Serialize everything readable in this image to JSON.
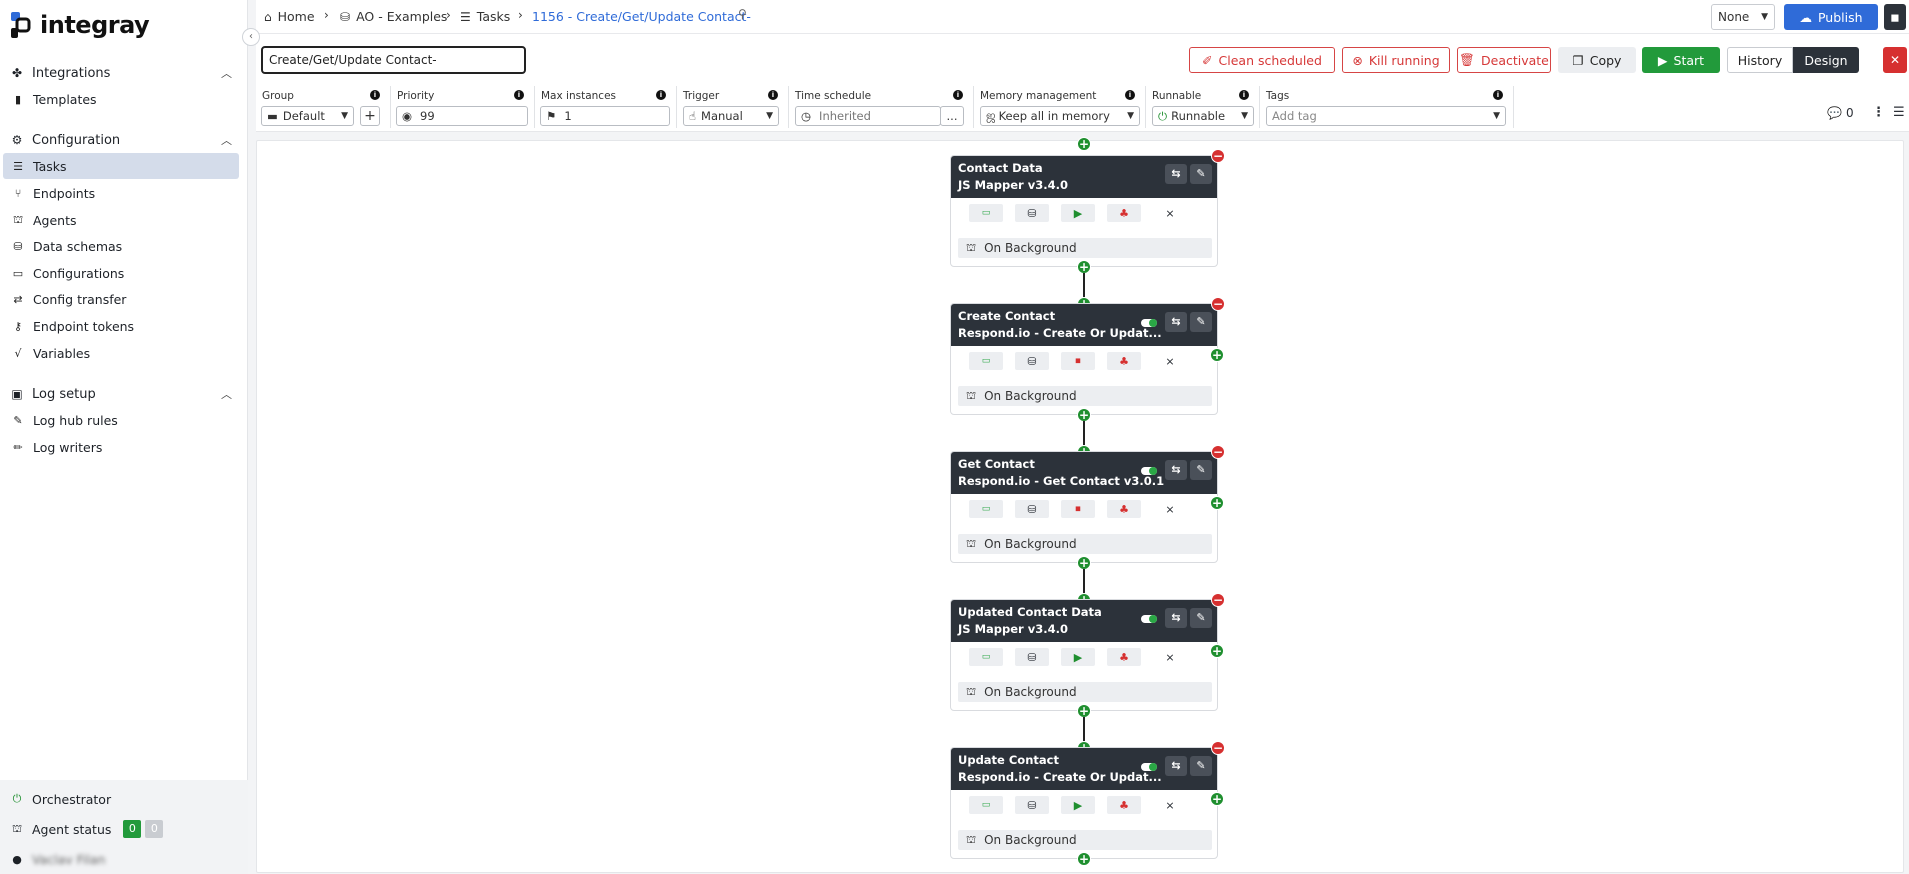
{
  "app": {
    "logo_text": "integray"
  },
  "sidebar": {
    "sections": [
      {
        "label": "Integrations",
        "items": [
          {
            "label": "Templates"
          }
        ]
      },
      {
        "label": "Configuration",
        "items": [
          {
            "label": "Tasks"
          },
          {
            "label": "Endpoints"
          },
          {
            "label": "Agents"
          },
          {
            "label": "Data schemas"
          },
          {
            "label": "Configurations"
          },
          {
            "label": "Config transfer"
          },
          {
            "label": "Endpoint tokens"
          },
          {
            "label": "Variables"
          }
        ]
      },
      {
        "label": "Log setup",
        "items": [
          {
            "label": "Log hub rules"
          },
          {
            "label": "Log writers"
          }
        ]
      }
    ],
    "footer": {
      "orchestrator": "Orchestrator",
      "agent_status": "Agent status",
      "agent_ok": "0",
      "agent_off": "0",
      "user_name": "Vaclav Filan"
    }
  },
  "breadcrumb": {
    "home": "Home",
    "folder": "AO - Examples",
    "section": "Tasks",
    "current": "1156 - Create/Get/Update Contact-"
  },
  "topbar": {
    "env_select": "None",
    "publish_label": "Publish"
  },
  "toolbar": {
    "task_name": "Create/Get/Update Contact-",
    "clean_scheduled": "Clean scheduled",
    "kill_running": "Kill running",
    "deactivate": "Deactivate",
    "copy": "Copy",
    "start": "Start",
    "history": "History",
    "design": "Design",
    "close": "✕"
  },
  "settings": {
    "group": {
      "label": "Group",
      "value": "Default"
    },
    "priority": {
      "label": "Priority",
      "value": "99"
    },
    "max_instances": {
      "label": "Max instances",
      "value": "1"
    },
    "trigger": {
      "label": "Trigger",
      "value": "Manual"
    },
    "time_schedule": {
      "label": "Time schedule",
      "placeholder": "Inherited",
      "more": "..."
    },
    "memory": {
      "label": "Memory management",
      "value": "Keep all in memory"
    },
    "runnable": {
      "label": "Runnable",
      "value": "Runnable"
    },
    "tags": {
      "label": "Tags",
      "placeholder": "Add tag"
    },
    "comments_count": "0"
  },
  "nodes": [
    {
      "title": "Contact Data",
      "subtitle": "JS Mapper v3.4.0",
      "status_icon": "play-icon",
      "background": "On Background",
      "has_toggle": false
    },
    {
      "title": "Create Contact",
      "subtitle": "Respond.io - Create Or Updat...",
      "status_icon": "stop-icon",
      "background": "On Background",
      "has_toggle": true
    },
    {
      "title": "Get Contact",
      "subtitle": "Respond.io - Get Contact v3.0.1",
      "status_icon": "stop-icon",
      "background": "On Background",
      "has_toggle": true
    },
    {
      "title": "Updated Contact Data",
      "subtitle": "JS Mapper v3.4.0",
      "status_icon": "play-icon",
      "background": "On Background",
      "has_toggle": true
    },
    {
      "title": "Update Contact",
      "subtitle": "Respond.io - Create Or Updat...",
      "status_icon": "play-icon",
      "background": "On Background",
      "has_toggle": true
    }
  ],
  "colors": {
    "accent": "#2f6bd8",
    "danger": "#d63838",
    "success": "#229a3b",
    "node_header": "#2c323a"
  }
}
